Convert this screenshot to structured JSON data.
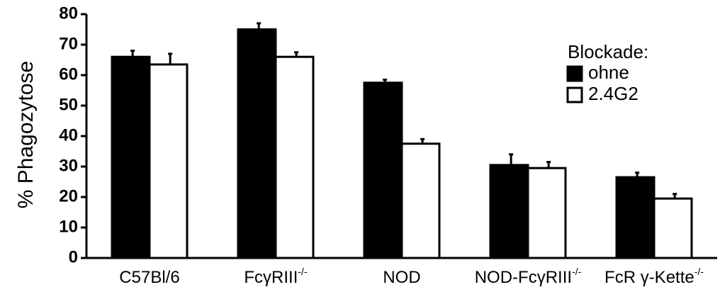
{
  "chart_data": {
    "type": "bar",
    "title": "",
    "xlabel": "",
    "ylabel": "% Phagozytose",
    "ylim": [
      0,
      80
    ],
    "yticks": [
      0,
      10,
      20,
      30,
      40,
      50,
      60,
      70,
      80
    ],
    "categories": [
      {
        "base": "C57Bl/6",
        "sup": ""
      },
      {
        "base": "FcγRIII",
        "sup": "-/-"
      },
      {
        "base": "NOD",
        "sup": ""
      },
      {
        "base": "NOD-FcγRIII",
        "sup": "-/-"
      },
      {
        "base": "FcR γ-Kette",
        "sup": "-/-"
      }
    ],
    "legend": {
      "title": "Blockade:",
      "position": "top-right"
    },
    "series": [
      {
        "name": "ohne",
        "fill": "#000000",
        "values": [
          66,
          75,
          57.5,
          30.5,
          26.5
        ],
        "errors": [
          2,
          2,
          1,
          3.5,
          1.5
        ]
      },
      {
        "name": "2.4G2",
        "fill": "#ffffff",
        "values": [
          63.5,
          66,
          37.5,
          29.5,
          19.5
        ],
        "errors": [
          3.5,
          1.5,
          1.5,
          2,
          1.5
        ]
      }
    ]
  }
}
